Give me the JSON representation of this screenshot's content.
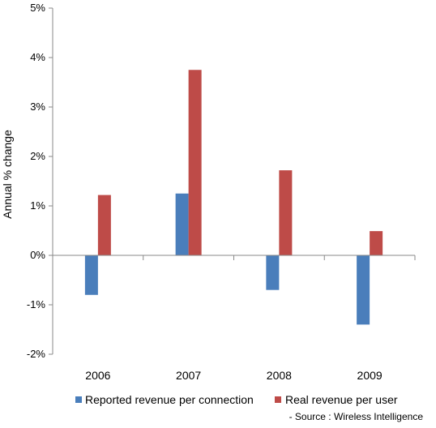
{
  "chart_data": {
    "type": "bar",
    "categories": [
      "2006",
      "2007",
      "2008",
      "2009"
    ],
    "series": [
      {
        "name": "Reported revenue per connection",
        "color": "#4a7ebb",
        "values": [
          -0.8,
          1.25,
          -0.7,
          -1.4
        ]
      },
      {
        "name": "Real revenue per user",
        "color": "#be4b48",
        "values": [
          1.22,
          3.75,
          1.72,
          0.49
        ]
      }
    ],
    "ylabel": "Annual % change",
    "ylim": [
      -2,
      5
    ],
    "yticks": [
      5,
      4,
      3,
      2,
      1,
      0,
      -1,
      -2
    ],
    "ytick_labels": [
      "5%",
      "4%",
      "3%",
      "2%",
      "1%",
      "0%",
      "-1%",
      "-2%"
    ],
    "grid": false,
    "legend_position": "bottom",
    "source": "- Source : Wireless Intelligence"
  }
}
